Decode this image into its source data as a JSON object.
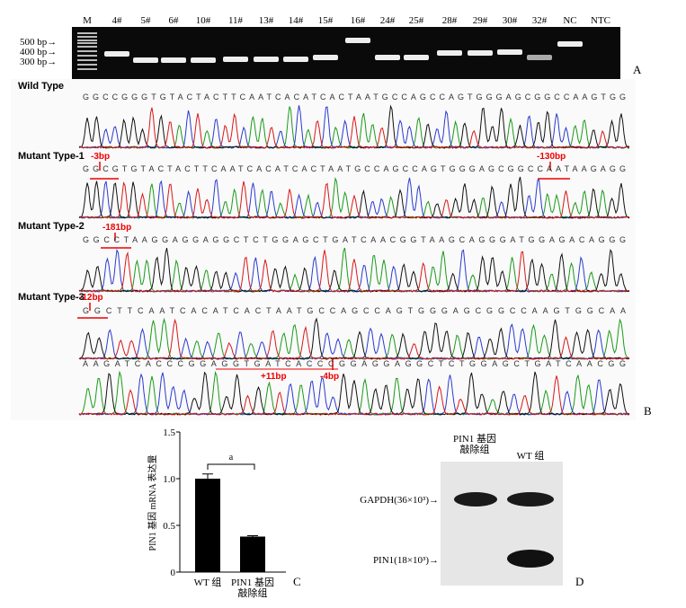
{
  "panel_a": {
    "lanes": [
      "M",
      "4#",
      "5#",
      "6#",
      "10#",
      "11#",
      "13#",
      "14#",
      "15#",
      "16#",
      "24#",
      "25#",
      "28#",
      "29#",
      "30#",
      "32#",
      "NC",
      "NTC"
    ],
    "size_markers": [
      "500 bp→",
      "400 bp→",
      "300 bp→"
    ],
    "label": "A"
  },
  "panel_b": {
    "rows": [
      {
        "name": "Wild Type",
        "sequences": [
          "GGCCGGGTGTACTACTTCAATCACATCACTAATGCCAGCCAGTGGGAGCGGCCAAGTGG"
        ]
      },
      {
        "name": "Mutant Type-1",
        "sequences": [
          "GGCGTGTACTACTTCAATCACATCACTAATGCCAGCCAGTGGGAGCGGCCAATAAGAGG"
        ]
      },
      {
        "name": "Mutant Type-2",
        "sequences": [
          "GGCCTAAGGAGGAGGCTCTGGAGCTGATCAACGGTAAGCAGGGATGGAGACAGGG"
        ]
      },
      {
        "name": "Mutant Type-3",
        "sequences": [
          "GGCTTCAATCACATCACTAATGCCAGCCAGTGGGAGCGGCCAAGTGGCAA",
          "AAGATCACCCGGAGGTGATCACCCGGAGGAGGCTCTGGAGCTGATCAACGG"
        ]
      }
    ],
    "annotations": [
      "-3bp",
      "-130bp",
      "-181bp",
      "-12bp",
      "+11bp",
      "-4bp"
    ],
    "label": "B"
  },
  "chart_data": {
    "type": "bar",
    "y_label": "PIN1 基因 mRNA 表达量",
    "categories": [
      "WT 组",
      "PIN1 基因\n敲除组"
    ],
    "values": [
      1.0,
      0.38
    ],
    "errors": [
      0.05,
      0.01
    ],
    "color": "#000000",
    "ylim": [
      0,
      1.5
    ],
    "yticks": [
      0,
      0.5,
      {
        "value": 1,
        "label": "1.0"
      },
      1.5
    ],
    "significance": "a",
    "label": "C"
  },
  "panel_d": {
    "columns": [
      "PIN1 基因\n敲除组",
      "WT 组"
    ],
    "bands": [
      "GAPDH(36×10³)→",
      "PIN1(18×10³)→"
    ],
    "label": "D"
  }
}
